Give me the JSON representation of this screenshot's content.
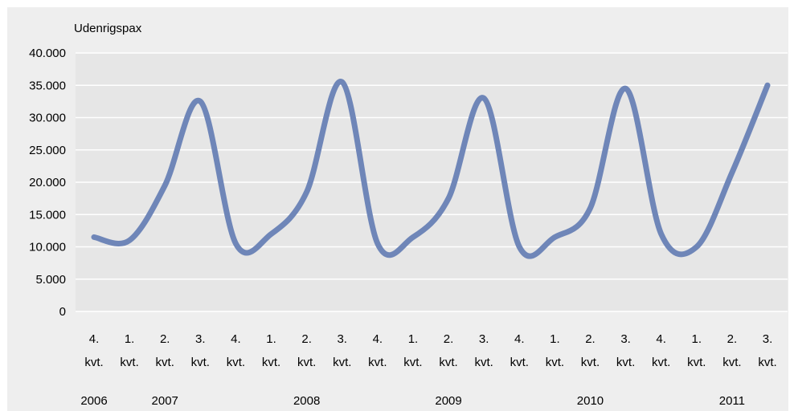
{
  "chart_data": {
    "type": "line",
    "title": "",
    "ylabel": "Udenrigspax",
    "xlabel": "",
    "ylim": [
      0,
      40000
    ],
    "yticks": [
      "0",
      "5.000",
      "10.000",
      "15.000",
      "20.000",
      "25.000",
      "30.000",
      "35.000",
      "40.000"
    ],
    "grid": true,
    "legend": "none",
    "categories": [
      [
        "4.",
        "kvt."
      ],
      [
        "1.",
        "kvt."
      ],
      [
        "2.",
        "kvt."
      ],
      [
        "3.",
        "kvt."
      ],
      [
        "4.",
        "kvt."
      ],
      [
        "1.",
        "kvt."
      ],
      [
        "2.",
        "kvt."
      ],
      [
        "3.",
        "kvt."
      ],
      [
        "4.",
        "kvt."
      ],
      [
        "1.",
        "kvt."
      ],
      [
        "2.",
        "kvt."
      ],
      [
        "3.",
        "kvt."
      ],
      [
        "4.",
        "kvt."
      ],
      [
        "1.",
        "kvt."
      ],
      [
        "2.",
        "kvt."
      ],
      [
        "3.",
        "kvt."
      ],
      [
        "4.",
        "kvt."
      ],
      [
        "1.",
        "kvt."
      ],
      [
        "2.",
        "kvt."
      ],
      [
        "3.",
        "kvt."
      ]
    ],
    "years": [
      {
        "label": "2006",
        "category_index": 0
      },
      {
        "label": "2007",
        "category_index": 2
      },
      {
        "label": "2008",
        "category_index": 6
      },
      {
        "label": "2009",
        "category_index": 10
      },
      {
        "label": "2010",
        "category_index": 14
      },
      {
        "label": "2011",
        "category_index": 18
      }
    ],
    "series": [
      {
        "values": [
          11500,
          11000,
          19500,
          32500,
          10500,
          12000,
          18500,
          35500,
          10500,
          11500,
          17500,
          33000,
          10000,
          11500,
          16000,
          34500,
          12000,
          10000,
          21500,
          35000
        ]
      }
    ],
    "colors": {
      "line": "#6f86b8",
      "plot_background": "#e6e6e6",
      "outer_background": "#eeeeee",
      "grid": "#ffffff"
    }
  }
}
